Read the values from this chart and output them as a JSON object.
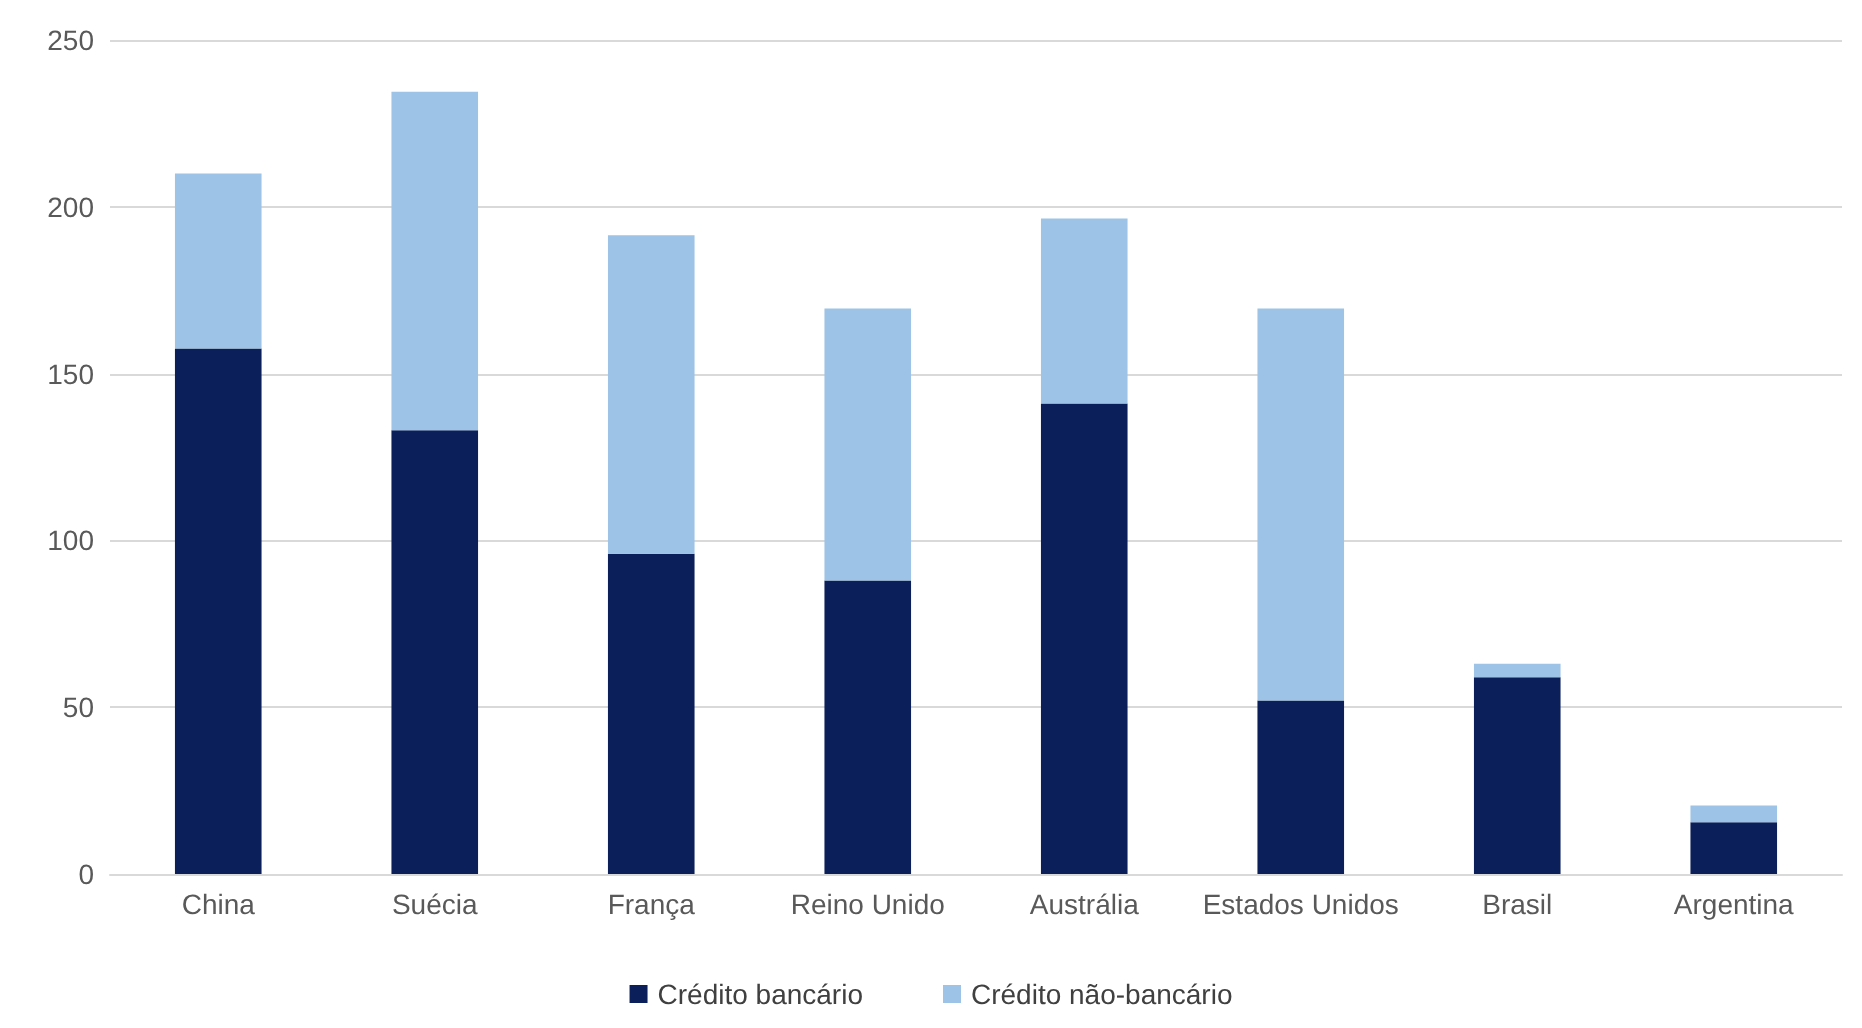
{
  "chart_data": {
    "type": "bar",
    "stacked": true,
    "categories": [
      "China",
      "Suécia",
      "França",
      "Reino Unido",
      "Austrália",
      "Estados Unidos",
      "Brasil",
      "Argentina"
    ],
    "series": [
      {
        "name": "Crédito bancário",
        "color": "#0b1f5b",
        "values": [
          157.5,
          133,
          96,
          88,
          141,
          52,
          59,
          15.5
        ]
      },
      {
        "name": "Crédito não-bancário",
        "color": "#9dc3e6",
        "values": [
          52.5,
          101.5,
          95.5,
          81.5,
          55.5,
          117.5,
          4,
          5
        ]
      }
    ],
    "ylim": [
      0,
      250
    ],
    "yticks": [
      0,
      50,
      100,
      150,
      200,
      250
    ],
    "grid": "y",
    "legend": "bottom"
  }
}
